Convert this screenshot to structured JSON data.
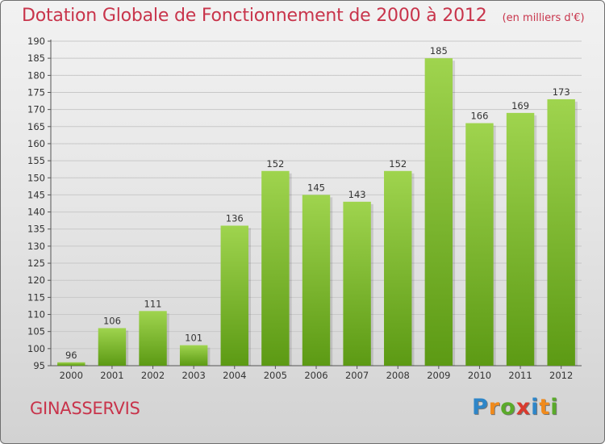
{
  "title": "Dotation Globale de Fonctionnement de 2000 à 2012",
  "unit_note": "(en milliers d'€)",
  "town": "GINASSERVIS",
  "logo": {
    "text": "Proxiti",
    "letters": [
      {
        "ch": "P",
        "color": "#2e86c8"
      },
      {
        "ch": "r",
        "color": "#f08a1c"
      },
      {
        "ch": "o",
        "color": "#5aaa2a"
      },
      {
        "ch": "x",
        "color": "#d93a2e"
      },
      {
        "ch": "i",
        "color": "#2e86c8"
      },
      {
        "ch": "t",
        "color": "#f08a1c"
      },
      {
        "ch": "i",
        "color": "#5aaa2a"
      }
    ]
  },
  "colors": {
    "accent": "#c8344b",
    "bar_light": "#9fd44e",
    "bar_dark": "#5c9a14",
    "grid": "#c8c8c8"
  },
  "chart_data": {
    "type": "bar",
    "title": "Dotation Globale de Fonctionnement de 2000 à 2012",
    "subtitle": "(en milliers d'€)",
    "categories": [
      "2000",
      "2001",
      "2002",
      "2003",
      "2004",
      "2005",
      "2006",
      "2007",
      "2008",
      "2009",
      "2010",
      "2011",
      "2012"
    ],
    "values": [
      96,
      106,
      111,
      101,
      136,
      152,
      145,
      143,
      152,
      185,
      166,
      169,
      173
    ],
    "ylim": [
      95,
      190
    ],
    "ytick_step": 5,
    "grid": true,
    "legend": "none"
  }
}
